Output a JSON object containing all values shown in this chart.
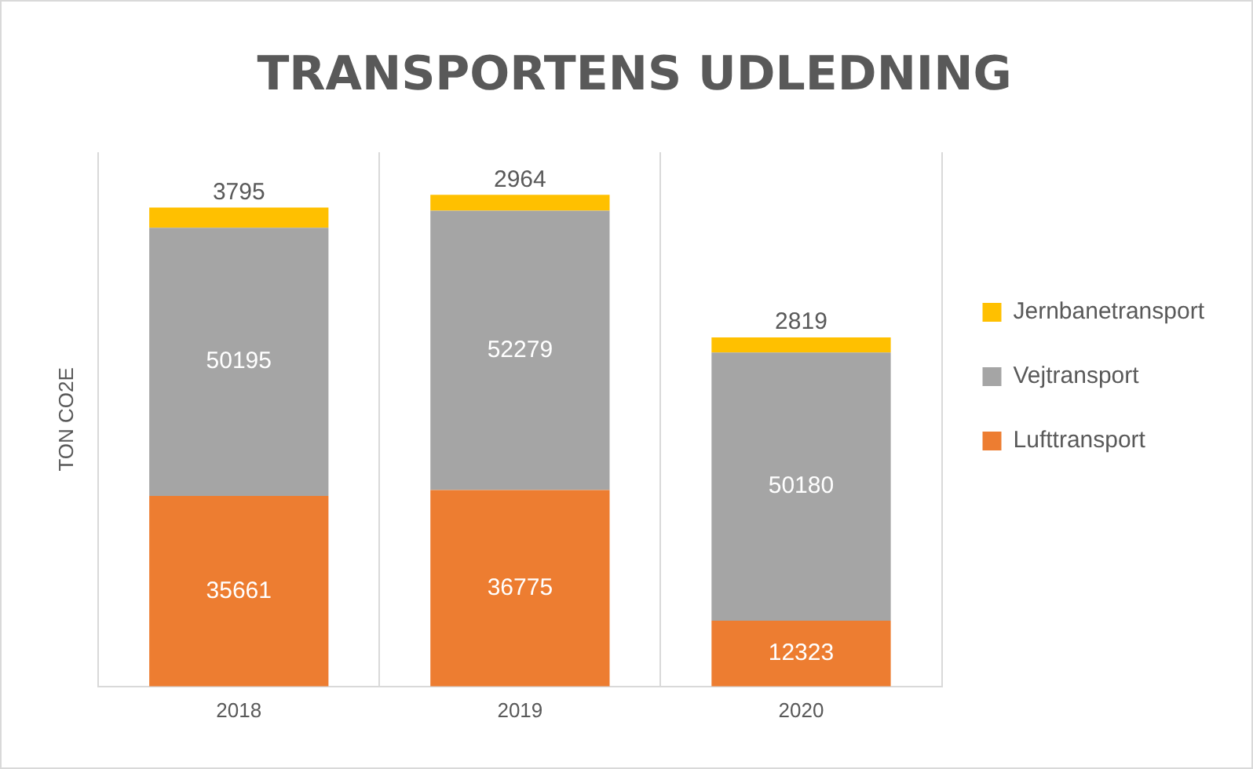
{
  "chart_data": {
    "type": "bar",
    "title": "TRANSPORTENS UDLEDNING",
    "ylabel": "TON CO2E",
    "categories": [
      "2018",
      "2019",
      "2020"
    ],
    "stacked": true,
    "data_labels": true,
    "grid": "x",
    "legend": "right",
    "tick_labels": "x",
    "series": [
      {
        "name": "Lufttransport",
        "color": "#ed7d31",
        "values": [
          35661,
          36775,
          12323
        ]
      },
      {
        "name": "Vejtransport",
        "color": "#a5a5a5",
        "values": [
          50195,
          52279,
          50180
        ]
      },
      {
        "name": "Jernbanetransport",
        "color": "#ffc000",
        "values": [
          3795,
          2964,
          2819
        ]
      }
    ]
  }
}
